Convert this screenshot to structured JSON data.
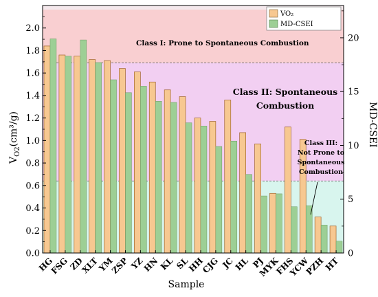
{
  "chart_data": {
    "type": "bar",
    "categories": [
      "HG",
      "FSG",
      "ZD",
      "XLT",
      "YM",
      "ZSP",
      "YZ",
      "HN",
      "KL",
      "SL",
      "HH",
      "CJG",
      "JC",
      "HL",
      "PJ",
      "MYK",
      "FHS",
      "YCW",
      "PZH",
      "HT"
    ],
    "series": [
      {
        "name": "VO₂",
        "axis": "left",
        "color": "#F7C891",
        "values": [
          1.84,
          1.76,
          1.75,
          1.72,
          1.71,
          1.64,
          1.61,
          1.52,
          1.45,
          1.39,
          1.2,
          1.17,
          1.36,
          1.07,
          0.97,
          0.53,
          1.12,
          1.01,
          0.32,
          0.24
        ]
      },
      {
        "name": "MD-CSEI",
        "axis": "right",
        "color": "#9DCF95",
        "values": [
          19.9,
          18.3,
          19.8,
          17.7,
          16.1,
          14.9,
          15.5,
          14.1,
          14.0,
          12.1,
          11.8,
          9.9,
          10.4,
          7.3,
          5.3,
          5.5,
          4.3,
          4.4,
          2.6,
          1.1
        ]
      }
    ],
    "xlabel": "Sample",
    "ylabel_left": "V",
    "ylabel_left_sub": "O2",
    "ylabel_left_unit": "(cm³/g)",
    "ylabel_right": "MD-CSEI",
    "ylim_left": [
      0.0,
      2.2
    ],
    "ylim_right": [
      0,
      23
    ],
    "yticks_left": [
      "0.0",
      "0.2",
      "0.4",
      "0.6",
      "0.8",
      "1.0",
      "1.2",
      "1.4",
      "1.6",
      "1.8",
      "2.0"
    ],
    "yticks_right": [
      "0",
      "5",
      "10",
      "15",
      "20"
    ],
    "legend_position": "top-right",
    "regions": [
      {
        "name": "class-1",
        "from": 1.69,
        "to": 2.2,
        "color": "#F9CFD1",
        "label": "Class I: Prone to Spontaneous Combustion"
      },
      {
        "name": "class-2",
        "from": 0.64,
        "to": 1.69,
        "color": "#F2CFF2",
        "label_line1": "Class II: Spontaneous",
        "label_line2": "Combustion"
      },
      {
        "name": "class-3",
        "from": 0.0,
        "to": 0.64,
        "color": "#D8F5EE",
        "label_lines": [
          "Class III:",
          "Not Prone to",
          "Spontaneous",
          "Combustion"
        ]
      }
    ]
  }
}
